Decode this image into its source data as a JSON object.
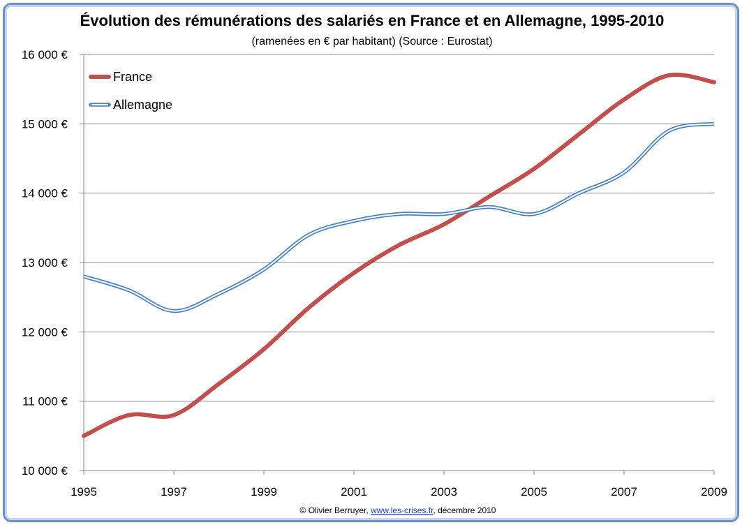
{
  "chart_data": {
    "type": "line",
    "title": "Évolution des rémunérations des salariés en France et en Allemagne, 1995-2010",
    "subtitle": "(ramenées en € par habitant) (Source : Eurostat)",
    "x": [
      1995,
      1996,
      1997,
      1998,
      1999,
      2000,
      2001,
      2002,
      2003,
      2004,
      2005,
      2006,
      2007,
      2008,
      2009
    ],
    "xticks": [
      "1995",
      "1997",
      "1999",
      "2001",
      "2003",
      "2005",
      "2007",
      "2009"
    ],
    "yticks": [
      "10 000 €",
      "11 000 €",
      "12 000 €",
      "13 000 €",
      "14 000 €",
      "15 000 €",
      "16 000 €"
    ],
    "ylim": [
      10000,
      16000
    ],
    "grid": true,
    "legend_position": "top-left",
    "series": [
      {
        "name": "France",
        "color": "#c0504d",
        "values": [
          10500,
          10800,
          10800,
          11250,
          11750,
          12350,
          12850,
          13250,
          13550,
          13950,
          14350,
          14850,
          15350,
          15700,
          15600
        ]
      },
      {
        "name": "Allemagne",
        "color": "#4f81bd",
        "values": [
          12800,
          12600,
          12300,
          12550,
          12900,
          13400,
          13600,
          13700,
          13700,
          13800,
          13700,
          14000,
          14300,
          14900,
          15000
        ]
      }
    ]
  },
  "credit": {
    "prefix": "© Olivier Berruyer, ",
    "link": "www.les-crises.fr",
    "suffix": ", décembre 2010"
  }
}
